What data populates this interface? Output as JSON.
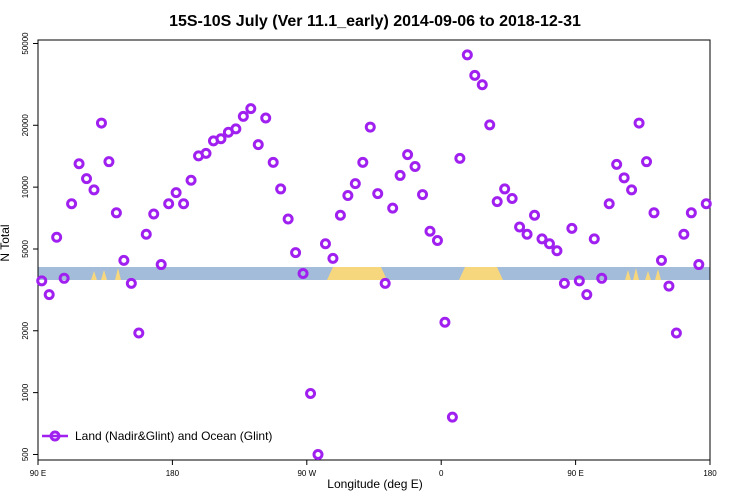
{
  "chart_data": {
    "type": "scatter",
    "title": "15S-10S July (Ver 11.1_early)   2014-09-06 to 2018-12-31",
    "xlabel": "Longitude (deg E)",
    "ylabel": "N Total",
    "xlim": [
      90,
      540
    ],
    "ylim_log": [
      470,
      52000
    ],
    "x_ticks": [
      {
        "value": 90,
        "label": "90 E"
      },
      {
        "value": 180,
        "label": "180"
      },
      {
        "value": 270,
        "label": "90 W"
      },
      {
        "value": 360,
        "label": "0"
      },
      {
        "value": 450,
        "label": "90 E"
      },
      {
        "value": 540,
        "label": "180"
      }
    ],
    "y_ticks": [
      {
        "value": 500,
        "label": "500"
      },
      {
        "value": 1000,
        "label": "1000"
      },
      {
        "value": 2000,
        "label": "2000"
      },
      {
        "value": 5000,
        "label": "5000"
      },
      {
        "value": 10000,
        "label": "10000"
      },
      {
        "value": 20000,
        "label": "20000"
      },
      {
        "value": 50000,
        "label": "50000"
      }
    ],
    "marker_color": "#a020f0",
    "band_color": "#a3bcd9",
    "land_color": "#f7d77d",
    "series": [
      {
        "name": "Land (Nadir&Glint) and Ocean (Glint)",
        "points": [
          [
            92.5,
            3500
          ],
          [
            97.5,
            3000
          ],
          [
            102.5,
            5700
          ],
          [
            107.5,
            3600
          ],
          [
            112.5,
            8300
          ],
          [
            117.5,
            13000
          ],
          [
            122.5,
            11000
          ],
          [
            127.5,
            9700
          ],
          [
            132.5,
            20500
          ],
          [
            137.5,
            13300
          ],
          [
            142.5,
            7500
          ],
          [
            147.5,
            4400
          ],
          [
            152.5,
            3400
          ],
          [
            157.5,
            1950
          ],
          [
            162.5,
            5900
          ],
          [
            167.5,
            7400
          ],
          [
            172.5,
            4200
          ],
          [
            177.5,
            8300
          ],
          [
            182.5,
            9400
          ],
          [
            187.5,
            8300
          ],
          [
            192.5,
            10800
          ],
          [
            197.5,
            14200
          ],
          [
            202.5,
            14600
          ],
          [
            207.5,
            16800
          ],
          [
            212.5,
            17200
          ],
          [
            217.5,
            18500
          ],
          [
            222.5,
            19200
          ],
          [
            227.5,
            22100
          ],
          [
            232.5,
            24100
          ],
          [
            237.5,
            16100
          ],
          [
            242.5,
            21700
          ],
          [
            247.5,
            13200
          ],
          [
            252.5,
            9800
          ],
          [
            257.5,
            7000
          ],
          [
            262.5,
            4800
          ],
          [
            267.5,
            3800
          ],
          [
            272.5,
            990
          ],
          [
            277.5,
            500
          ],
          [
            282.5,
            5300
          ],
          [
            287.5,
            4500
          ],
          [
            292.5,
            7300
          ],
          [
            297.5,
            9100
          ],
          [
            302.5,
            10400
          ],
          [
            307.5,
            13200
          ],
          [
            312.5,
            19600
          ],
          [
            317.5,
            9300
          ],
          [
            322.5,
            3400
          ],
          [
            327.5,
            7900
          ],
          [
            332.5,
            11400
          ],
          [
            337.5,
            14400
          ],
          [
            342.5,
            12600
          ],
          [
            347.5,
            9200
          ],
          [
            352.5,
            6100
          ],
          [
            357.5,
            5500
          ],
          [
            362.5,
            2200
          ],
          [
            367.5,
            760
          ],
          [
            372.5,
            13800
          ],
          [
            377.5,
            44000
          ],
          [
            382.5,
            35000
          ],
          [
            387.5,
            31500
          ],
          [
            392.5,
            20100
          ],
          [
            397.5,
            8500
          ],
          [
            402.5,
            9800
          ],
          [
            407.5,
            8800
          ],
          [
            412.5,
            6400
          ],
          [
            417.5,
            5900
          ],
          [
            422.5,
            7300
          ],
          [
            427.5,
            5600
          ],
          [
            432.5,
            5300
          ],
          [
            437.5,
            4900
          ],
          [
            442.5,
            3400
          ],
          [
            447.5,
            6300
          ],
          [
            452.5,
            3500
          ],
          [
            457.5,
            3000
          ],
          [
            462.5,
            5600
          ],
          [
            467.5,
            3600
          ],
          [
            472.5,
            8300
          ],
          [
            477.5,
            12900
          ],
          [
            482.5,
            11100
          ],
          [
            487.5,
            9700
          ],
          [
            492.5,
            20500
          ],
          [
            497.5,
            13300
          ],
          [
            502.5,
            7500
          ],
          [
            507.5,
            4400
          ],
          [
            512.5,
            3300
          ],
          [
            517.5,
            1950
          ],
          [
            522.5,
            5900
          ],
          [
            527.5,
            7500
          ],
          [
            532.5,
            4200
          ],
          [
            537.5,
            8300
          ]
        ]
      }
    ],
    "legend": {
      "position": "bottom-left"
    }
  }
}
